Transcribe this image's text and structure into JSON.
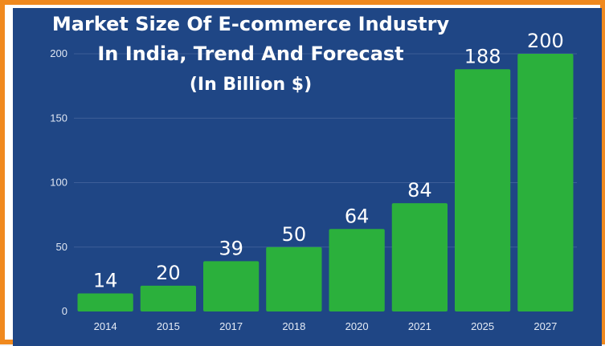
{
  "chart_data": {
    "type": "bar",
    "title_lines": [
      "Market Size Of E-commerce Industry",
      "In India, Trend And Forecast",
      "(In Billion $)"
    ],
    "categories": [
      "2014",
      "2015",
      "2017",
      "2018",
      "2020",
      "2021",
      "2025",
      "2027"
    ],
    "values": [
      14,
      20,
      39,
      50,
      64,
      84,
      188,
      200
    ],
    "value_labels": [
      "14",
      "20",
      "39",
      "50",
      "64",
      "84",
      "188",
      "200"
    ],
    "yticks": [
      "0",
      "50",
      "100",
      "150",
      "200"
    ],
    "ytick_values": [
      0,
      50,
      100,
      150,
      200
    ],
    "ylim": [
      0,
      200
    ],
    "grid": true,
    "legend": "none",
    "colors": {
      "bar": "#2bb03c",
      "background": "#1f4685",
      "frame": "#f0891e",
      "text": "#ffffff"
    }
  }
}
